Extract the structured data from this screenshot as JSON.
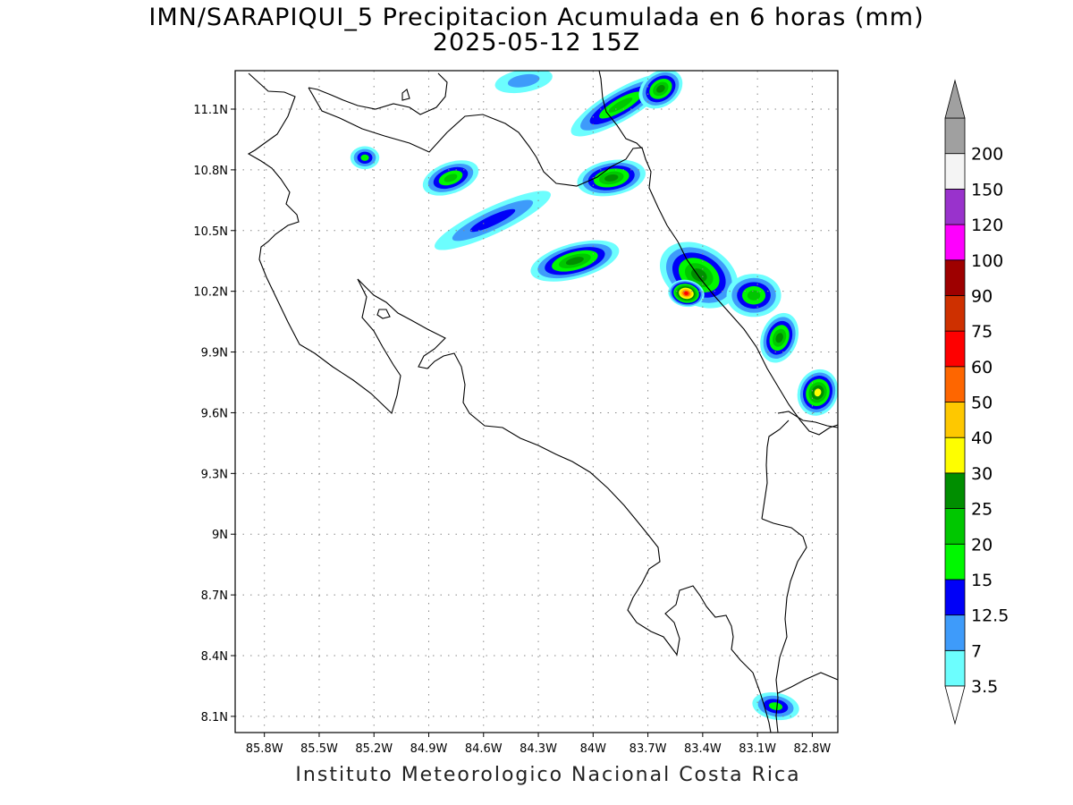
{
  "title": {
    "line1": "IMN/SARAPIQUI_5 Precipitacion Acumulada en 6 horas (mm)",
    "line2": "2025-05-12 15Z"
  },
  "footer": "Instituto Meteorologico Nacional Costa Rica",
  "map": {
    "lon_range": [
      -85.96,
      -82.66
    ],
    "lat_range": [
      8.02,
      11.29
    ],
    "lon_ticks": [
      {
        "value": -85.8,
        "label": "85.8W"
      },
      {
        "value": -85.5,
        "label": "85.5W"
      },
      {
        "value": -85.2,
        "label": "85.2W"
      },
      {
        "value": -84.9,
        "label": "84.9W"
      },
      {
        "value": -84.6,
        "label": "84.6W"
      },
      {
        "value": -84.3,
        "label": "84.3W"
      },
      {
        "value": -84.0,
        "label": "84W"
      },
      {
        "value": -83.7,
        "label": "83.7W"
      },
      {
        "value": -83.4,
        "label": "83.4W"
      },
      {
        "value": -83.1,
        "label": "83.1W"
      },
      {
        "value": -82.8,
        "label": "82.8W"
      }
    ],
    "lat_ticks": [
      {
        "value": 11.1,
        "label": "11.1N"
      },
      {
        "value": 10.8,
        "label": "10.8N"
      },
      {
        "value": 10.5,
        "label": "10.5N"
      },
      {
        "value": 10.2,
        "label": "10.2N"
      },
      {
        "value": 9.9,
        "label": "9.9N"
      },
      {
        "value": 9.6,
        "label": "9.6N"
      },
      {
        "value": 9.3,
        "label": "9.3N"
      },
      {
        "value": 9.0,
        "label": "9N"
      },
      {
        "value": 8.7,
        "label": "8.7N"
      },
      {
        "value": 8.4,
        "label": "8.4N"
      },
      {
        "value": 8.1,
        "label": "8.1N"
      }
    ],
    "grid": true,
    "colors": {
      "border": "#000000",
      "grid": "#888888"
    }
  },
  "colorbar": {
    "levels": [
      {
        "label": "3.5",
        "color": "#6cfefe"
      },
      {
        "label": "7",
        "color": "#3e9bfa"
      },
      {
        "label": "12.5",
        "color": "#0000f8"
      },
      {
        "label": "15",
        "color": "#00f800"
      },
      {
        "label": "20",
        "color": "#00c700"
      },
      {
        "label": "25",
        "color": "#008e00"
      },
      {
        "label": "30",
        "color": "#fefe00"
      },
      {
        "label": "40",
        "color": "#fec800"
      },
      {
        "label": "50",
        "color": "#fe6600"
      },
      {
        "label": "60",
        "color": "#fe0000"
      },
      {
        "label": "75",
        "color": "#ce3000"
      },
      {
        "label": "90",
        "color": "#9e0000"
      },
      {
        "label": "100",
        "color": "#fe00fe"
      },
      {
        "label": "120",
        "color": "#9932cc"
      },
      {
        "label": "150",
        "color": "#f4f4f4"
      },
      {
        "label": "200",
        "color": "#a0a0a0"
      }
    ]
  },
  "precip_cells": [
    {
      "lon": -83.85,
      "lat": 11.12,
      "rx": 0.28,
      "ry": 0.05,
      "rot": -30,
      "level": 4
    },
    {
      "lon": -83.63,
      "lat": 11.2,
      "rx": 0.1,
      "ry": 0.06,
      "rot": -35,
      "level": 5
    },
    {
      "lon": -84.38,
      "lat": 11.24,
      "rx": 0.13,
      "ry": 0.03,
      "rot": -10,
      "level": 1
    },
    {
      "lon": -83.9,
      "lat": 10.76,
      "rx": 0.16,
      "ry": 0.06,
      "rot": -10,
      "level": 5
    },
    {
      "lon": -84.78,
      "lat": 10.76,
      "rx": 0.13,
      "ry": 0.05,
      "rot": -20,
      "level": 4
    },
    {
      "lon": -85.25,
      "lat": 10.86,
      "rx": 0.05,
      "ry": 0.03,
      "rot": 0,
      "level": 3
    },
    {
      "lon": -84.55,
      "lat": 10.55,
      "rx": 0.32,
      "ry": 0.04,
      "rot": -25,
      "level": 2
    },
    {
      "lon": -84.1,
      "lat": 10.35,
      "rx": 0.22,
      "ry": 0.06,
      "rot": -15,
      "level": 5
    },
    {
      "lon": -83.42,
      "lat": 10.28,
      "rx": 0.2,
      "ry": 0.12,
      "rot": 30,
      "level": 5
    },
    {
      "lon": -83.49,
      "lat": 10.19,
      "rx": 0.07,
      "ry": 0.04,
      "rot": 10,
      "level": 9
    },
    {
      "lon": -83.12,
      "lat": 10.18,
      "rx": 0.12,
      "ry": 0.08,
      "rot": 0,
      "level": 4
    },
    {
      "lon": -82.98,
      "lat": 9.97,
      "rx": 0.07,
      "ry": 0.1,
      "rot": 20,
      "level": 5
    },
    {
      "lon": -82.77,
      "lat": 9.7,
      "rx": 0.08,
      "ry": 0.09,
      "rot": 20,
      "level": 6
    },
    {
      "lon": -83.0,
      "lat": 8.15,
      "rx": 0.1,
      "ry": 0.04,
      "rot": 10,
      "level": 3
    }
  ]
}
